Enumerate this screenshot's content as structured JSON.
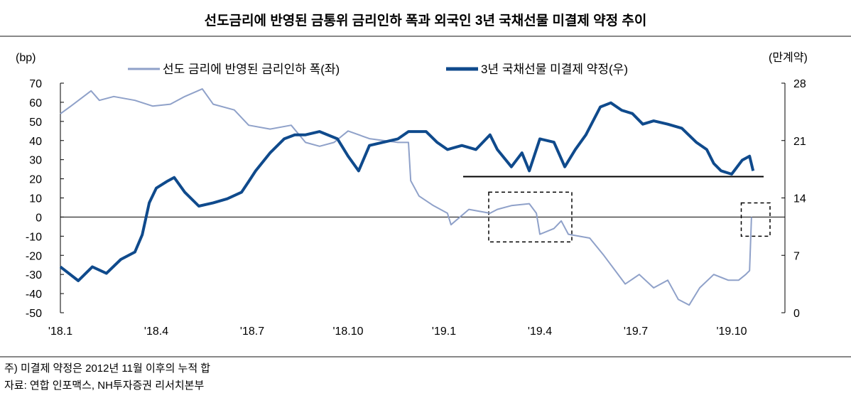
{
  "chart_data": {
    "type": "line",
    "title": "선도금리에 반영된 금통위 금리인하 폭과 외국인 3년 국채선물 미결제 약정 추이",
    "ylabel_left": "(bp)",
    "ylabel_right": "(만계약)",
    "ylim_left": [
      -50,
      70
    ],
    "yticks_left": [
      70,
      60,
      50,
      40,
      30,
      20,
      10,
      0,
      -10,
      -20,
      -30,
      -40,
      -50
    ],
    "ylim_right": [
      0,
      28
    ],
    "yticks_right": [
      28,
      21,
      14,
      7,
      0
    ],
    "x_unit": "months since 2018-01",
    "xlim": [
      0,
      22.7
    ],
    "xticks": [
      {
        "x": 0,
        "label": "'18.1"
      },
      {
        "x": 3,
        "label": "'18.4"
      },
      {
        "x": 6,
        "label": "'18.7"
      },
      {
        "x": 9,
        "label": "'18.10"
      },
      {
        "x": 12,
        "label": "'19.1"
      },
      {
        "x": 15,
        "label": "'19.4"
      },
      {
        "x": 18,
        "label": "'19.7"
      },
      {
        "x": 21,
        "label": "'19.10"
      }
    ],
    "legend_position": "top",
    "series": [
      {
        "name": "선도 금리에 반영된 금리인하 폭(좌)",
        "axis": "left",
        "color": "#8fa1c9",
        "x": [
          0,
          0.33,
          0.96,
          1.22,
          1.67,
          2.33,
          2.89,
          3.44,
          3.89,
          4.44,
          4.78,
          5.44,
          5.89,
          6.56,
          7.22,
          7.67,
          8.11,
          8.56,
          9,
          9.67,
          10.56,
          10.89,
          10.96,
          11.22,
          11.67,
          12.11,
          12.22,
          12.78,
          13.44,
          13.67,
          14.11,
          14.67,
          14.89,
          15,
          15.44,
          15.67,
          15.89,
          16.56,
          17,
          17.67,
          18.11,
          18.56,
          19,
          19.33,
          19.67,
          20,
          20.44,
          20.89,
          21.22,
          21.44,
          21.56,
          21.62
        ],
        "y": [
          54,
          58,
          66,
          61,
          63,
          61,
          58,
          59,
          63,
          67,
          59,
          56,
          48,
          46,
          48,
          39,
          37,
          39,
          45,
          41,
          39,
          39,
          19,
          11,
          6,
          2,
          -4,
          4,
          2,
          4,
          6,
          7,
          2,
          -9,
          -6,
          -2,
          -9,
          -11,
          -20,
          -35,
          -30,
          -37,
          -33,
          -43,
          -46,
          -37,
          -30,
          -33,
          -33,
          -30,
          -28,
          0
        ]
      },
      {
        "name": "3년 국채선물 미결제 약정(우)",
        "axis": "right",
        "color": "#0f4a8c",
        "x": [
          0,
          0.56,
          1,
          1.44,
          1.89,
          2.33,
          2.56,
          2.78,
          3,
          3.33,
          3.56,
          3.89,
          4.33,
          4.78,
          5.22,
          5.67,
          5.89,
          6.11,
          6.56,
          7,
          7.33,
          7.67,
          8.11,
          8.67,
          9,
          9.33,
          9.67,
          10.11,
          10.56,
          10.89,
          11.44,
          11.78,
          12.11,
          12.56,
          13,
          13.44,
          13.67,
          14.11,
          14.44,
          14.67,
          15,
          15.44,
          15.78,
          16.11,
          16.44,
          16.89,
          17.22,
          17.56,
          17.89,
          18.22,
          18.56,
          19,
          19.44,
          19.89,
          20.22,
          20.44,
          20.67,
          21,
          21.33,
          21.56,
          21.67
        ],
        "y": [
          5.6,
          3.9,
          5.6,
          4.8,
          6.5,
          7.4,
          9.5,
          13.4,
          15.2,
          16.0,
          16.5,
          14.7,
          13.0,
          13.4,
          13.9,
          14.7,
          16.0,
          17.3,
          19.5,
          21.2,
          21.7,
          21.7,
          22.1,
          21.2,
          19.1,
          17.3,
          20.4,
          20.8,
          21.2,
          22.1,
          22.1,
          20.8,
          19.9,
          20.4,
          19.9,
          21.7,
          19.9,
          17.8,
          19.5,
          17.3,
          21.2,
          20.8,
          17.8,
          19.9,
          21.7,
          25.1,
          25.6,
          24.7,
          24.3,
          23.0,
          23.4,
          23.0,
          22.5,
          20.8,
          19.9,
          18.2,
          17.3,
          16.9,
          18.6,
          19.1,
          17.3
        ]
      }
    ],
    "annotations": {
      "hline_right": {
        "value": 16.6,
        "x": [
          12.6,
          22
        ]
      },
      "boxes_left": [
        {
          "x": [
            13.4,
            16.0
          ],
          "y": [
            -13,
            13
          ]
        },
        {
          "x": [
            21.3,
            22.2
          ],
          "y": [
            -10,
            7.4
          ]
        }
      ]
    }
  },
  "notes": {
    "note": "주) 미결제 약정은 2012년 11월 이후의 누적 합",
    "source": "자료: 연합 인포맥스, NH투자증권 리서치본부"
  }
}
